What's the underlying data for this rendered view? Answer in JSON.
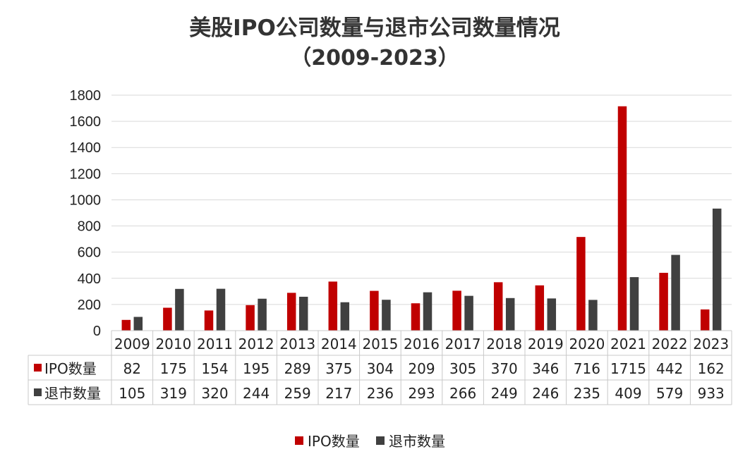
{
  "chart_data": {
    "type": "bar",
    "title": "美股IPO公司数量与退市公司数量情况",
    "subtitle": "（2009-2023）",
    "categories": [
      "2009",
      "2010",
      "2011",
      "2012",
      "2013",
      "2014",
      "2015",
      "2016",
      "2017",
      "2018",
      "2019",
      "2020",
      "2021",
      "2022",
      "2023"
    ],
    "series": [
      {
        "name": "IPO数量",
        "color": "#c00000",
        "values": [
          82,
          175,
          154,
          195,
          289,
          375,
          304,
          209,
          305,
          370,
          346,
          716,
          1715,
          442,
          162
        ]
      },
      {
        "name": "退市数量",
        "color": "#404040",
        "values": [
          105,
          319,
          320,
          244,
          259,
          217,
          236,
          293,
          266,
          249,
          246,
          235,
          409,
          579,
          933
        ]
      }
    ],
    "ylim": [
      0,
      1800
    ],
    "yticks": [
      0,
      200,
      400,
      600,
      800,
      1000,
      1200,
      1400,
      1600,
      1800
    ],
    "grid": true,
    "legend": "bottom",
    "data_table": true
  }
}
